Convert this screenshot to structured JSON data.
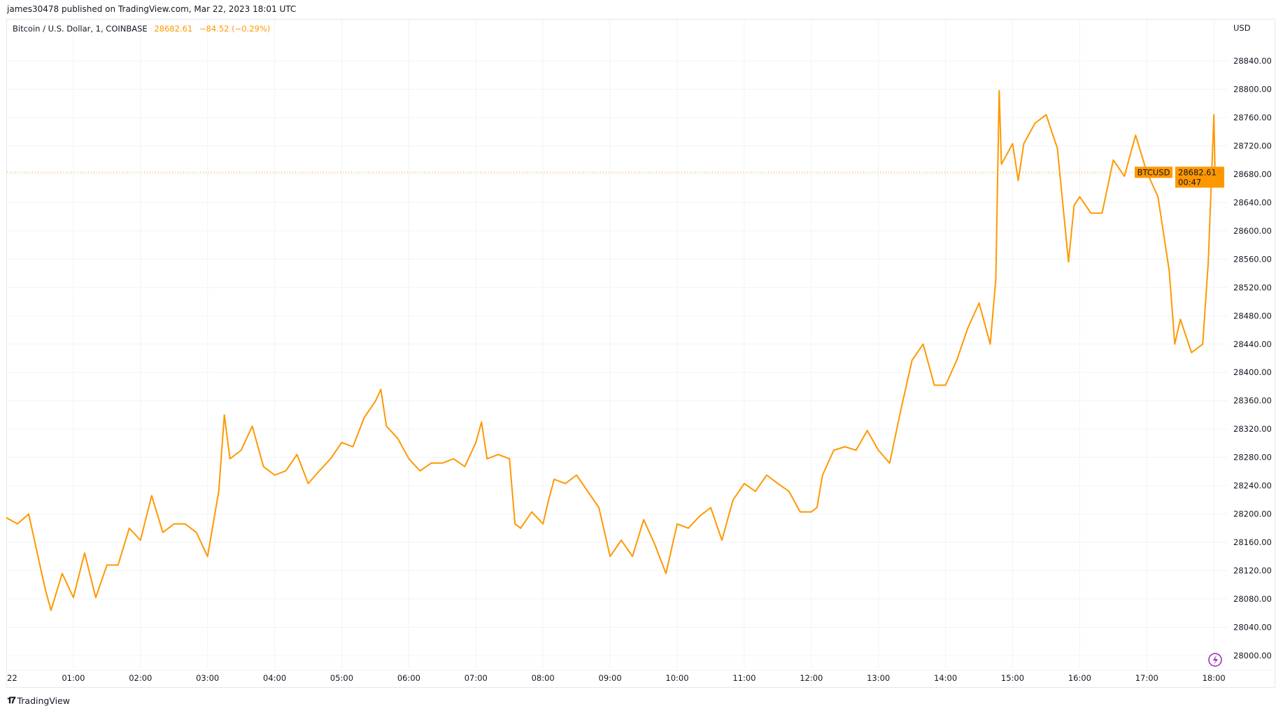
{
  "header": {
    "published": "james30478 published on TradingView.com, Mar 22, 2023 18:01 UTC"
  },
  "legend": {
    "symbol": "Bitcoin / U.S. Dollar, 1, COINBASE",
    "price": "28682.61",
    "change": "−84.52 (−0.29%)"
  },
  "price_axis": {
    "currency": "USD"
  },
  "last_price_tag": {
    "symbol": "BTCUSD",
    "price": "28682.61",
    "countdown": "00:47"
  },
  "footer": {
    "brand": "TradingView",
    "logo": "17"
  },
  "colors": {
    "line": "#FF9800",
    "grid": "#f0f3fa",
    "alert_icon": "#9c27b0"
  },
  "icons": {
    "alert": "lightning-icon"
  },
  "chart_data": {
    "type": "line",
    "title": "Bitcoin / U.S. Dollar, 1, COINBASE",
    "ylim": [
      28000,
      28860
    ],
    "ytick_labels": [
      "28000.00",
      "28040.00",
      "28080.00",
      "28120.00",
      "28160.00",
      "28200.00",
      "28240.00",
      "28280.00",
      "28320.00",
      "28360.00",
      "28400.00",
      "28440.00",
      "28480.00",
      "28520.00",
      "28560.00",
      "28600.00",
      "28640.00",
      "28680.00",
      "28720.00",
      "28760.00",
      "28800.00",
      "28840.00"
    ],
    "xtick_labels": [
      "22",
      "01:00",
      "02:00",
      "03:00",
      "04:00",
      "05:00",
      "06:00",
      "07:00",
      "08:00",
      "09:00",
      "10:00",
      "11:00",
      "12:00",
      "13:00",
      "14:00",
      "15:00",
      "16:00",
      "17:00",
      "18:00"
    ],
    "grid": true,
    "series": [
      {
        "x": [
          "00:00",
          "00:10",
          "00:20",
          "00:30",
          "00:35",
          "00:40",
          "00:50",
          "01:00",
          "01:10",
          "01:20",
          "01:30",
          "01:40",
          "01:50",
          "02:00",
          "02:10",
          "02:20",
          "02:30",
          "02:40",
          "02:50",
          "03:00",
          "03:10",
          "03:15",
          "03:20",
          "03:30",
          "03:40",
          "03:50",
          "04:00",
          "04:10",
          "04:20",
          "04:30",
          "04:40",
          "04:50",
          "05:00",
          "05:10",
          "05:20",
          "05:30",
          "05:35",
          "05:40",
          "05:50",
          "06:00",
          "06:10",
          "06:20",
          "06:30",
          "06:40",
          "06:50",
          "07:00",
          "07:05",
          "07:10",
          "07:20",
          "07:30",
          "07:35",
          "07:40",
          "07:50",
          "08:00",
          "08:05",
          "08:10",
          "08:20",
          "08:30",
          "08:40",
          "08:50",
          "09:00",
          "09:10",
          "09:20",
          "09:30",
          "09:40",
          "09:50",
          "10:00",
          "10:10",
          "10:20",
          "10:30",
          "10:40",
          "10:50",
          "11:00",
          "11:10",
          "11:20",
          "11:30",
          "11:40",
          "11:50",
          "12:00",
          "12:05",
          "12:10",
          "12:20",
          "12:30",
          "12:40",
          "12:50",
          "13:00",
          "13:10",
          "13:20",
          "13:30",
          "13:40",
          "13:50",
          "14:00",
          "14:10",
          "14:20",
          "14:30",
          "14:40",
          "14:45",
          "14:48",
          "14:50",
          "15:00",
          "15:05",
          "15:10",
          "15:20",
          "15:30",
          "15:35",
          "15:40",
          "15:50",
          "15:55",
          "16:00",
          "16:10",
          "16:20",
          "16:30",
          "16:40",
          "16:50",
          "17:00",
          "17:10",
          "17:20",
          "17:25",
          "17:30",
          "17:40",
          "17:50",
          "17:55",
          "18:00",
          "18:01"
        ],
        "values": [
          28195,
          28186,
          28200,
          28128,
          28093,
          28064,
          28116,
          28082,
          28145,
          28082,
          28128,
          28128,
          28180,
          28163,
          28226,
          28174,
          28186,
          28186,
          28174,
          28140,
          28232,
          28340,
          28278,
          28290,
          28324,
          28267,
          28255,
          28261,
          28284,
          28243,
          28261,
          28278,
          28301,
          28295,
          28336,
          28359,
          28376,
          28324,
          28307,
          28278,
          28261,
          28272,
          28272,
          28278,
          28267,
          28301,
          28330,
          28278,
          28284,
          28278,
          28186,
          28180,
          28203,
          28186,
          28220,
          28249,
          28243,
          28255,
          28232,
          28209,
          28140,
          28163,
          28140,
          28192,
          28157,
          28116,
          28186,
          28180,
          28197,
          28209,
          28163,
          28220,
          28243,
          28232,
          28255,
          28243,
          28232,
          28203,
          28203,
          28209,
          28255,
          28290,
          28295,
          28290,
          28318,
          28290,
          28272,
          28347,
          28417,
          28440,
          28382,
          28382,
          28417,
          28463,
          28498,
          28440,
          28532,
          28798,
          28694,
          28723,
          28671,
          28723,
          28752,
          28764,
          28740,
          28717,
          28556,
          28636,
          28648,
          28625,
          28625,
          28700,
          28677,
          28735,
          28683,
          28648,
          28544,
          28440,
          28475,
          28428,
          28440,
          28556,
          28764,
          28682.61
        ]
      }
    ]
  }
}
